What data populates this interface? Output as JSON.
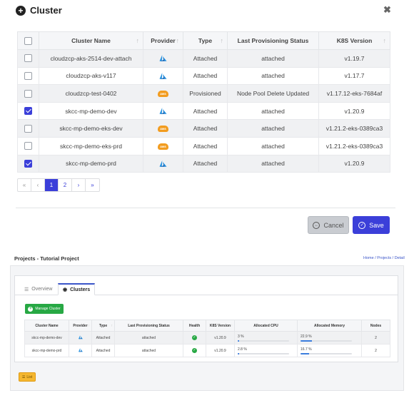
{
  "modal": {
    "title": "Cluster",
    "columns": [
      "Cluster Name",
      "Provider",
      "Type",
      "Last Provisioning Status",
      "K8S Version"
    ],
    "rows": [
      {
        "checked": false,
        "name": "cloudzcp-aks-2514-dev-attach",
        "provider": "azure",
        "type": "Attached",
        "status": "attached",
        "version": "v1.19.7"
      },
      {
        "checked": false,
        "name": "cloudzcp-aks-v117",
        "provider": "azure",
        "type": "Attached",
        "status": "attached",
        "version": "v1.17.7"
      },
      {
        "checked": false,
        "name": "cloudzcp-test-0402",
        "provider": "aws",
        "type": "Provisioned",
        "status": "Node Pool Delete Updated",
        "version": "v1.17.12-eks-7684af"
      },
      {
        "checked": true,
        "name": "skcc-mp-demo-dev",
        "provider": "azure",
        "type": "Attached",
        "status": "attached",
        "version": "v1.20.9"
      },
      {
        "checked": false,
        "name": "skcc-mp-demo-eks-dev",
        "provider": "aws",
        "type": "Attached",
        "status": "attached",
        "version": "v1.21.2-eks-0389ca3"
      },
      {
        "checked": false,
        "name": "skcc-mp-demo-eks-prd",
        "provider": "aws",
        "type": "Attached",
        "status": "attached",
        "version": "v1.21.2-eks-0389ca3"
      },
      {
        "checked": true,
        "name": "skcc-mp-demo-prd",
        "provider": "azure",
        "type": "Attached",
        "status": "attached",
        "version": "v1.20.9"
      }
    ],
    "pagination": {
      "first": "«",
      "prev": "‹",
      "pages": [
        "1",
        "2"
      ],
      "next": "›",
      "last": "»",
      "current": "1"
    },
    "cancel_label": "Cancel",
    "save_label": "Save"
  },
  "page": {
    "title": "Projects - Tutorial Project",
    "breadcrumb": "Home / Projects / Detail",
    "tabs": {
      "overview": "Overview",
      "clusters": "Clusters"
    },
    "manage_label": "Manage Cluster",
    "columns": [
      "Cluster Name",
      "Provider",
      "Type",
      "Last Provisioning Status",
      "Health",
      "K8S Version",
      "Allocated CPU",
      "Allocated Memory",
      "Nodes"
    ],
    "rows": [
      {
        "name": "skcc-mp-demo-dev",
        "provider": "azure",
        "type": "Attached",
        "status": "attached",
        "version": "v1.20.9",
        "cpu": "3 %",
        "cpu_pct": 3,
        "mem": "22.9 %",
        "mem_pct": 22.9,
        "nodes": "2"
      },
      {
        "name": "skcc-mp-demo-prd",
        "provider": "azure",
        "type": "Attached",
        "status": "attached",
        "version": "v1.20.9",
        "cpu": "2.8 %",
        "cpu_pct": 2.8,
        "mem": "16.7 %",
        "mem_pct": 16.7,
        "nodes": "2"
      }
    ],
    "list_label": "List"
  },
  "colors": {
    "accent": "#3b3fd9",
    "success": "#27a844",
    "aws": "#f29c1f",
    "azure": "#1f8fe0"
  }
}
